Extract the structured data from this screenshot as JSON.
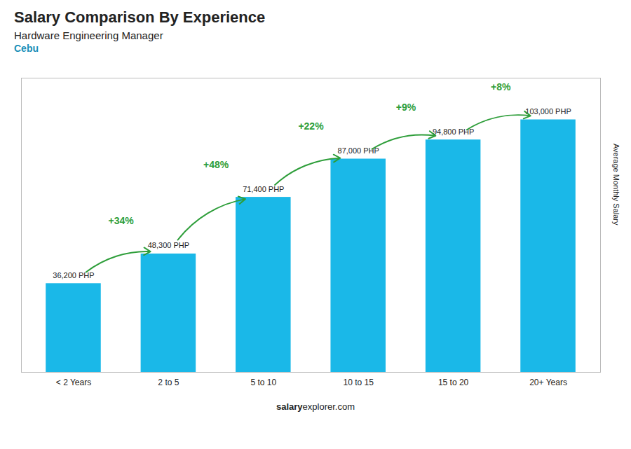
{
  "chart_data": {
    "type": "bar",
    "title": "Salary Comparison By Experience",
    "subtitle": [
      "Hardware Engineering Manager",
      "Cebu"
    ],
    "categories": [
      "< 2 Years",
      "2 to 5",
      "5 to 10",
      "10 to 15",
      "15 to 20",
      "20+ Years"
    ],
    "values": [
      36200,
      48300,
      71400,
      87000,
      94800,
      103000
    ],
    "value_labels": [
      "36,200 PHP",
      "48,300 PHP",
      "71,400 PHP",
      "87,000 PHP",
      "94,800 PHP",
      "103,000 PHP"
    ],
    "data_labels": true,
    "color": "#1ab8e8",
    "ylabel": "Average Monthly Salary",
    "ylim": [
      0,
      120000
    ],
    "tick_labels": "x",
    "grid": false,
    "annotations": [
      {
        "text": "+34%",
        "from": "< 2 Years",
        "to": "2 to 5"
      },
      {
        "text": "+48%",
        "from": "2 to 5",
        "to": "5 to 10"
      },
      {
        "text": "+22%",
        "from": "5 to 10",
        "to": "10 to 15"
      },
      {
        "text": "+9%",
        "from": "10 to 15",
        "to": "15 to 20"
      },
      {
        "text": "+8%",
        "from": "15 to 20",
        "to": "20+ Years"
      }
    ],
    "footer": [
      "salary",
      "explorer.com"
    ]
  }
}
